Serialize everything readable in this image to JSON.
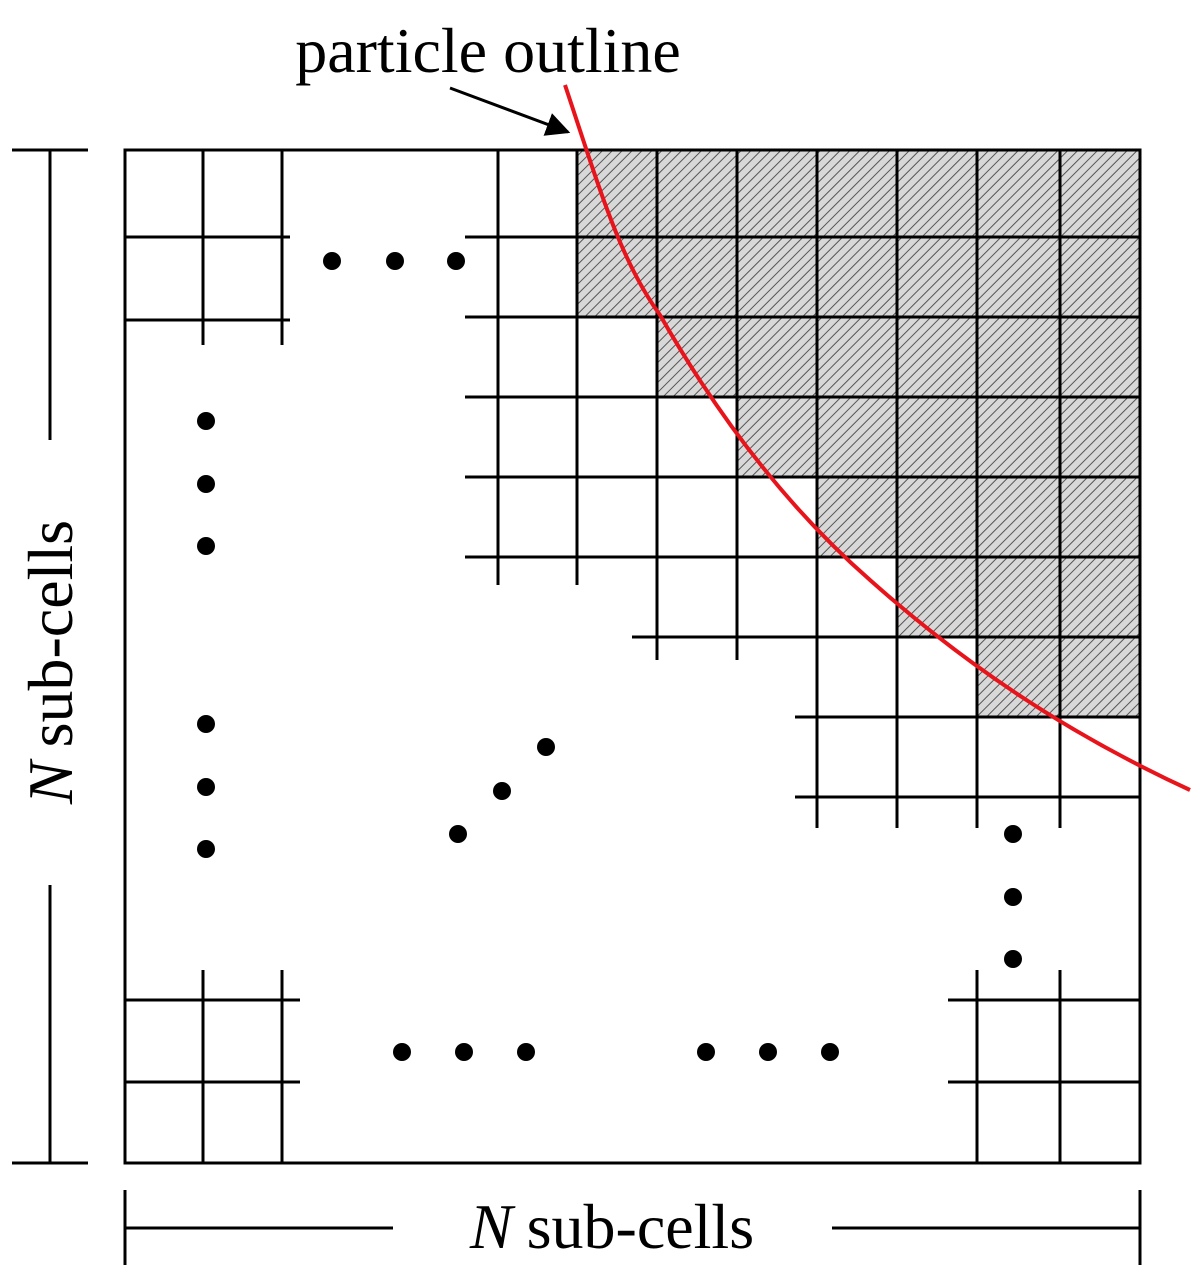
{
  "annotation": {
    "label": "particle outline"
  },
  "width_dimension": {
    "symbol": "N",
    "label": "sub-cells"
  },
  "height_dimension": {
    "symbol": "N",
    "label": "sub-cells"
  }
}
